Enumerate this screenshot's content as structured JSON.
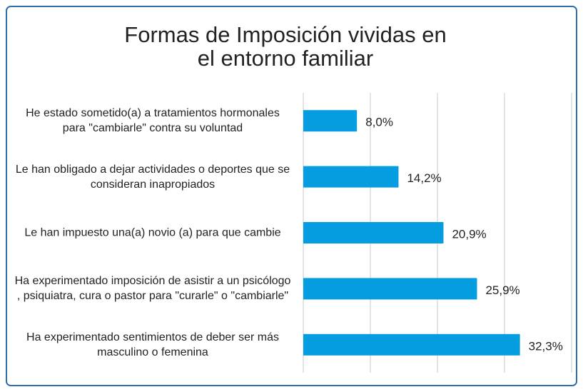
{
  "chart_data": {
    "type": "bar",
    "orientation": "horizontal",
    "title": "Formas de Imposición vividas en el entorno familiar",
    "categories": [
      "He estado sometido(a) a tratamientos hormonales para \"cambiarle\" contra su voluntad",
      "Le han obligado a dejar actividades o deportes que se consideran inapropiados",
      "Le han impuesto una(a) novio (a) para que cambie",
      "Ha experimentado imposición de asistir a un psicólogo , psiquiatra, cura o pastor para \"curarle\" o \"cambiarle\"",
      "Ha experimentado sentimientos de deber ser más masculino o femenina"
    ],
    "values": [
      8.0,
      14.2,
      20.9,
      25.9,
      32.3
    ],
    "value_labels": [
      "8,0%",
      "14,2%",
      "20,9%",
      "25,9%",
      "32,3%"
    ],
    "color": "#069de0",
    "xlim": [
      0,
      40
    ],
    "xticks": [
      0,
      10,
      20,
      30,
      40
    ],
    "grid": true
  }
}
